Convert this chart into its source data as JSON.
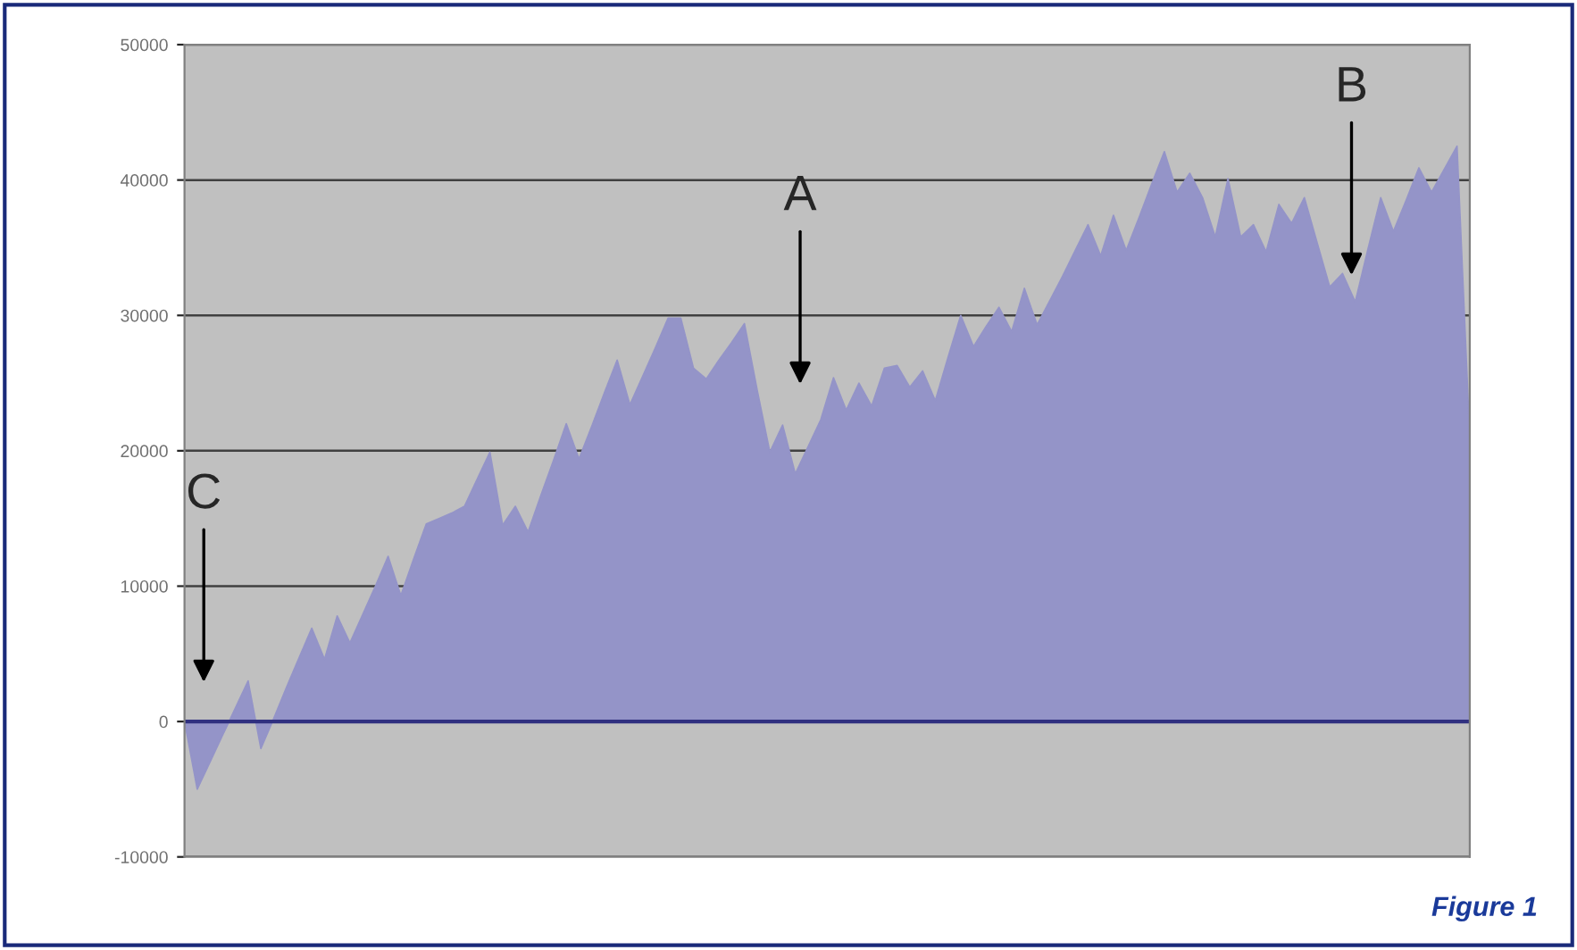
{
  "chart_data": {
    "type": "area",
    "categories": [
      null,
      null,
      null,
      null,
      null,
      null,
      null,
      null,
      null,
      null,
      null,
      null,
      null,
      null,
      null,
      null,
      null,
      null,
      null,
      null,
      null,
      null,
      null,
      null,
      null,
      null,
      null,
      null,
      null,
      null,
      null,
      null,
      null,
      null,
      null,
      null,
      null,
      null,
      null,
      null,
      null,
      null,
      null,
      null,
      null,
      null,
      null,
      null,
      null,
      null,
      null,
      null,
      null,
      null,
      null,
      null,
      null,
      null,
      null,
      null,
      null,
      null,
      null,
      null,
      null,
      null,
      null,
      null,
      null,
      null,
      null,
      null,
      null,
      null,
      null,
      null,
      null,
      null,
      null,
      null,
      null,
      null,
      null,
      null,
      null,
      null,
      null,
      null,
      null,
      null,
      null,
      null,
      null,
      null,
      null,
      null,
      null,
      null,
      null,
      null,
      null,
      null
    ],
    "series": [
      {
        "color": "#9494c8",
        "values": [
          0,
          -5000,
          -3000,
          -1000,
          1000,
          3000,
          -2000,
          200,
          2500,
          4700,
          6900,
          4600,
          7800,
          5800,
          7900,
          10000,
          12200,
          9300,
          12000,
          14600,
          15000,
          15400,
          15900,
          17900,
          19900,
          14500,
          15900,
          14000,
          16700,
          19300,
          22000,
          19400,
          21800,
          24300,
          26700,
          23400,
          25500,
          27600,
          29800,
          29800,
          26100,
          25300,
          26700,
          28000,
          29400,
          24500,
          19900,
          21900,
          18300,
          20300,
          22300,
          25400,
          23000,
          25000,
          23300,
          26100,
          26300,
          24700,
          25900,
          23700,
          26900,
          30000,
          27700,
          29200,
          30600,
          28800,
          32000,
          29300,
          31100,
          32900,
          34800,
          36700,
          34400,
          37400,
          34800,
          37200,
          39700,
          42100,
          39100,
          40500,
          38700,
          35800,
          40100,
          35800,
          36700,
          34700,
          38200,
          36800,
          38700,
          35400,
          32100,
          33100,
          31000,
          34900,
          38700,
          36200,
          38500,
          40900,
          39100,
          40800,
          42500,
          21000
        ]
      }
    ],
    "ylim": [
      -10000,
      50000
    ],
    "yticks": [
      -10000,
      0,
      10000,
      20000,
      30000,
      40000,
      50000
    ],
    "grid": "y",
    "ref_lines": [
      {
        "axis": "y",
        "value": 0,
        "color": "#303080"
      }
    ],
    "annotations": [
      "A",
      "B",
      "C",
      "Figure 1"
    ]
  }
}
